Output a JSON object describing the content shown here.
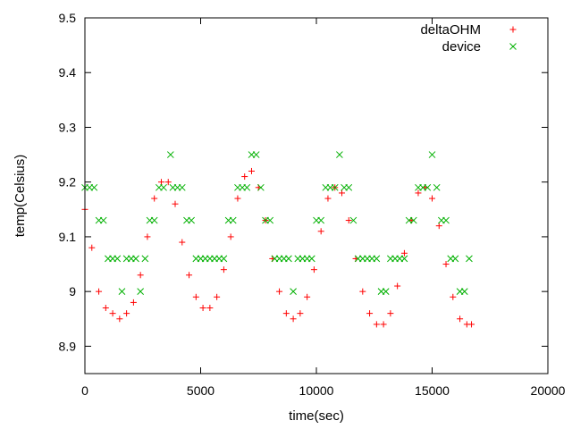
{
  "chart_data": {
    "type": "scatter",
    "title": "",
    "xlabel": "time(sec)",
    "ylabel": "temp(Celsius)",
    "xlim": [
      0,
      20000
    ],
    "ylim": [
      8.85,
      9.5
    ],
    "xticks": [
      0,
      5000,
      10000,
      15000,
      20000
    ],
    "xtick_labels": [
      "0",
      "5000",
      "10000",
      "15000",
      "20000"
    ],
    "yticks": [
      8.9,
      9.0,
      9.1,
      9.2,
      9.3,
      9.4,
      9.5
    ],
    "ytick_labels": [
      "8.9",
      "9",
      "9.1",
      "9.2",
      "9.3",
      "9.4",
      "9.5"
    ],
    "grid": false,
    "legend": "top-right",
    "series": [
      {
        "name": "deltaOHM",
        "marker": "plus",
        "color": "#ff0000",
        "x": [
          0,
          300,
          600,
          900,
          1200,
          1500,
          1800,
          2100,
          2400,
          2700,
          3000,
          3300,
          3600,
          3900,
          4200,
          4500,
          4800,
          5100,
          5400,
          5700,
          6000,
          6300,
          6600,
          6900,
          7200,
          7500,
          7800,
          8100,
          8400,
          8700,
          9000,
          9300,
          9600,
          9900,
          10200,
          10500,
          10800,
          11100,
          11400,
          11700,
          12000,
          12300,
          12600,
          12900,
          13200,
          13500,
          13800,
          14100,
          14400,
          14700,
          15000,
          15300,
          15600,
          15900,
          16200,
          16500,
          16700
        ],
        "y": [
          9.15,
          9.08,
          9.0,
          8.97,
          8.96,
          8.95,
          8.96,
          8.98,
          9.03,
          9.1,
          9.17,
          9.2,
          9.2,
          9.16,
          9.09,
          9.03,
          8.99,
          8.97,
          8.97,
          8.99,
          9.04,
          9.1,
          9.17,
          9.21,
          9.22,
          9.19,
          9.13,
          9.06,
          9.0,
          8.96,
          8.95,
          8.96,
          8.99,
          9.04,
          9.11,
          9.17,
          9.19,
          9.18,
          9.13,
          9.06,
          9.0,
          8.96,
          8.94,
          8.94,
          8.96,
          9.01,
          9.07,
          9.13,
          9.18,
          9.19,
          9.17,
          9.12,
          9.05,
          8.99,
          8.95,
          8.94,
          8.94
        ]
      },
      {
        "name": "device",
        "marker": "cross",
        "color": "#00b000",
        "x": [
          0,
          200,
          400,
          600,
          800,
          1000,
          1200,
          1400,
          1600,
          1800,
          2000,
          2200,
          2400,
          2600,
          2800,
          3000,
          3200,
          3400,
          3700,
          3800,
          4000,
          4200,
          4400,
          4600,
          4800,
          5000,
          5200,
          5400,
          5600,
          5800,
          6000,
          6200,
          6400,
          6600,
          6800,
          7000,
          7200,
          7400,
          7600,
          7800,
          8000,
          8200,
          8400,
          8600,
          8800,
          9000,
          9200,
          9400,
          9600,
          9800,
          10000,
          10200,
          10400,
          10600,
          10800,
          11000,
          11200,
          11400,
          11600,
          11800,
          12000,
          12200,
          12400,
          12600,
          12800,
          13000,
          13200,
          13400,
          13600,
          13800,
          14000,
          14200,
          14400,
          14600,
          14800,
          15000,
          15200,
          15400,
          15600,
          15800,
          16000,
          16200,
          16400,
          16600
        ],
        "y": [
          9.19,
          9.19,
          9.19,
          9.13,
          9.13,
          9.06,
          9.06,
          9.06,
          9.0,
          9.06,
          9.06,
          9.06,
          9.0,
          9.06,
          9.13,
          9.13,
          9.19,
          9.19,
          9.25,
          9.19,
          9.19,
          9.19,
          9.13,
          9.13,
          9.06,
          9.06,
          9.06,
          9.06,
          9.06,
          9.06,
          9.06,
          9.13,
          9.13,
          9.19,
          9.19,
          9.19,
          9.25,
          9.25,
          9.19,
          9.13,
          9.13,
          9.06,
          9.06,
          9.06,
          9.06,
          9.0,
          9.06,
          9.06,
          9.06,
          9.06,
          9.13,
          9.13,
          9.19,
          9.19,
          9.19,
          9.25,
          9.19,
          9.19,
          9.13,
          9.06,
          9.06,
          9.06,
          9.06,
          9.06,
          9.0,
          9.0,
          9.06,
          9.06,
          9.06,
          9.06,
          9.13,
          9.13,
          9.19,
          9.19,
          9.19,
          9.25,
          9.19,
          9.13,
          9.13,
          9.06,
          9.06,
          9.0,
          9.0,
          9.06
        ]
      }
    ]
  }
}
